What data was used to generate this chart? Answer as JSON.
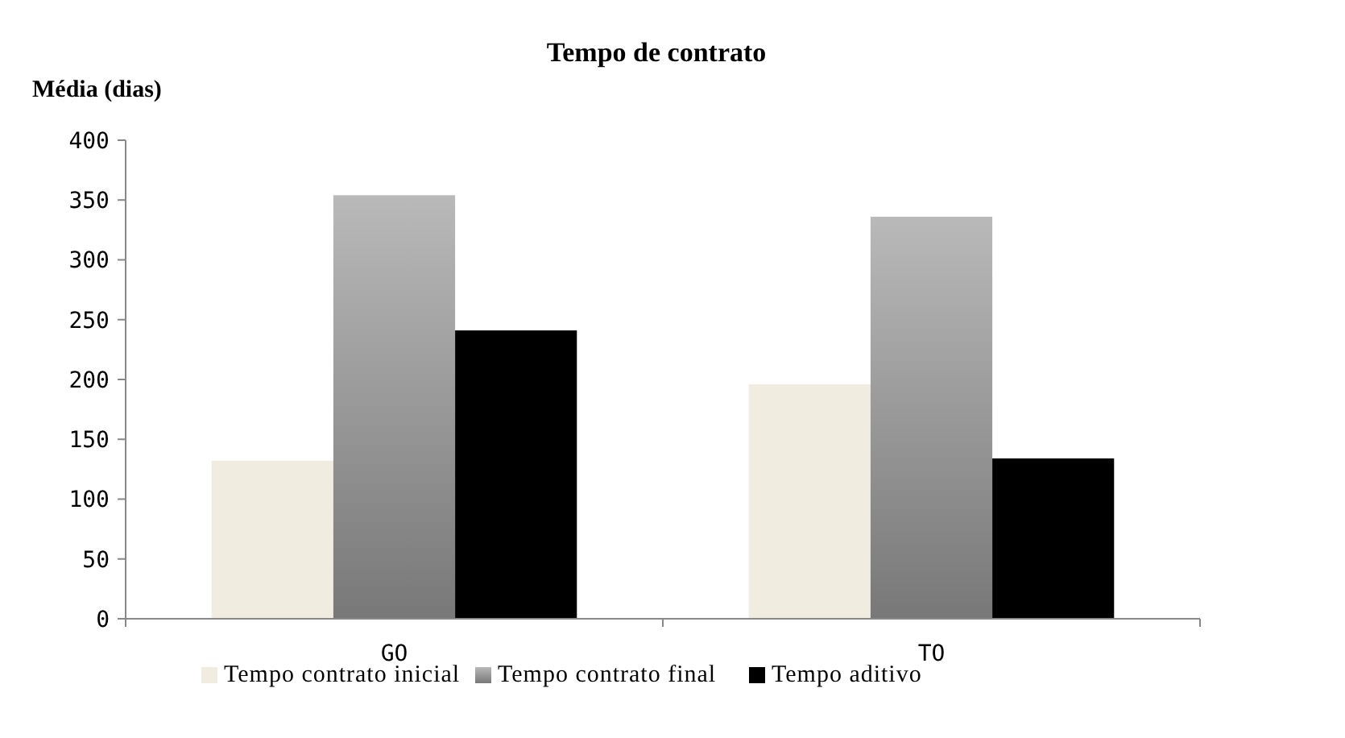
{
  "chart_data": {
    "type": "bar",
    "title": "Tempo de contrato",
    "ylabel": "Média (dias)",
    "categories": [
      "GO",
      "TO"
    ],
    "series": [
      {
        "name": "Tempo contrato inicial",
        "color": "#f0ece0",
        "values": [
          132,
          196
        ]
      },
      {
        "name": "Tempo contrato final",
        "color": "#a6a6a6",
        "values": [
          354,
          336
        ]
      },
      {
        "name": "Tempo aditivo",
        "color": "#000000",
        "values": [
          241,
          134
        ]
      }
    ],
    "ylim": [
      0,
      400
    ],
    "yticks": [
      0,
      50,
      100,
      150,
      200,
      250,
      300,
      350,
      400
    ],
    "grid": false,
    "legend": "bottom"
  }
}
